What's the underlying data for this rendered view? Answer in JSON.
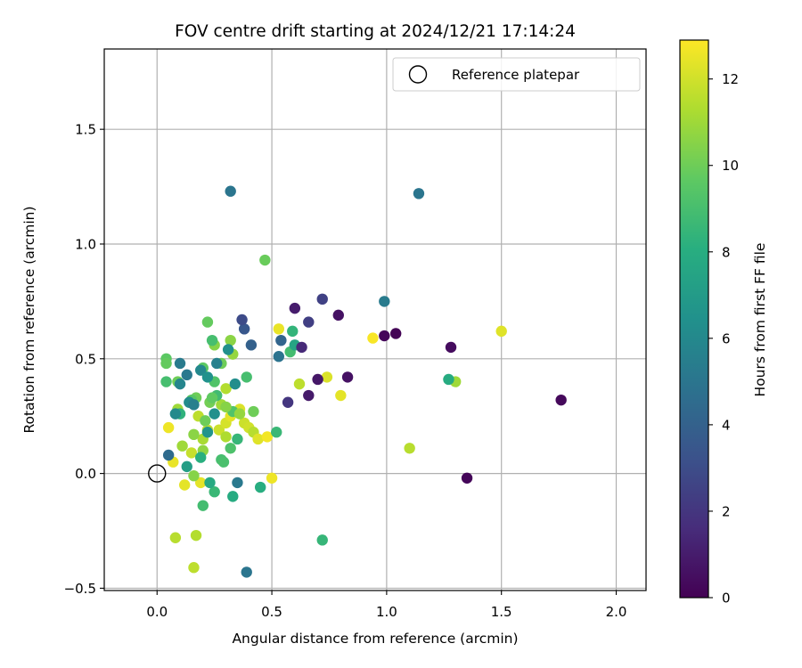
{
  "chart_data": {
    "type": "scatter",
    "title": "FOV centre drift starting at 2024/12/21 17:14:24",
    "xlabel": "Angular distance from reference (arcmin)",
    "ylabel": "Rotation from reference (arcmin)",
    "xlim": [
      -0.23,
      2.13
    ],
    "ylim": [
      -0.51,
      1.85
    ],
    "xticks": [
      0.0,
      0.5,
      1.0,
      1.5,
      2.0
    ],
    "xtick_labels": [
      "0.0",
      "0.5",
      "1.0",
      "1.5",
      "2.0"
    ],
    "yticks": [
      -0.5,
      0.0,
      0.5,
      1.0,
      1.5
    ],
    "ytick_labels": [
      "−0.5",
      "0.0",
      "0.5",
      "1.0",
      "1.5"
    ],
    "grid": true,
    "legend": {
      "position": "top-right",
      "entries": [
        "Reference platepar"
      ]
    },
    "reference_point": {
      "x": 0.0,
      "y": 0.0
    },
    "colorbar": {
      "label": "Hours from first FF file",
      "colormap": "viridis",
      "range": [
        0,
        12.9
      ],
      "ticks": [
        0,
        2,
        4,
        6,
        8,
        10,
        12
      ],
      "tick_labels": [
        "0",
        "2",
        "4",
        "6",
        "8",
        "10",
        "12"
      ]
    },
    "points": [
      [
        0.07,
        0.05,
        12.5
      ],
      [
        0.12,
        -0.05,
        12.4
      ],
      [
        0.08,
        -0.28,
        11.5
      ],
      [
        0.17,
        -0.27,
        11.4
      ],
      [
        0.16,
        -0.41,
        11.6
      ],
      [
        0.11,
        0.12,
        11.0
      ],
      [
        0.15,
        0.09,
        11.8
      ],
      [
        0.2,
        0.15,
        11.2
      ],
      [
        0.22,
        0.19,
        11.7
      ],
      [
        0.18,
        0.25,
        11.6
      ],
      [
        0.05,
        0.2,
        12.6
      ],
      [
        0.27,
        0.19,
        11.9
      ],
      [
        0.3,
        0.22,
        12.1
      ],
      [
        0.32,
        0.25,
        12.4
      ],
      [
        0.36,
        0.28,
        12.2
      ],
      [
        0.38,
        0.22,
        11.9
      ],
      [
        0.4,
        0.2,
        12.0
      ],
      [
        0.42,
        0.18,
        11.5
      ],
      [
        0.44,
        0.15,
        12.3
      ],
      [
        0.48,
        0.16,
        12.7
      ],
      [
        0.5,
        -0.02,
        12.6
      ],
      [
        0.53,
        0.63,
        12.5
      ],
      [
        0.62,
        0.39,
        11.6
      ],
      [
        0.74,
        0.42,
        12.2
      ],
      [
        0.8,
        0.34,
        12.4
      ],
      [
        0.94,
        0.59,
        12.8
      ],
      [
        1.1,
        0.11,
        11.5
      ],
      [
        1.3,
        0.4,
        11.0
      ],
      [
        1.5,
        0.62,
        12.3
      ],
      [
        0.3,
        0.16,
        11.3
      ],
      [
        0.3,
        0.37,
        11.4
      ],
      [
        0.28,
        0.3,
        11.0
      ],
      [
        0.25,
        0.56,
        10.5
      ],
      [
        0.2,
        0.1,
        10.7
      ],
      [
        0.19,
        -0.04,
        12.4
      ],
      [
        0.16,
        -0.01,
        10.5
      ],
      [
        0.16,
        0.17,
        10.6
      ],
      [
        0.17,
        0.33,
        10.0
      ],
      [
        0.15,
        0.32,
        9.5
      ],
      [
        0.09,
        0.28,
        11.0
      ],
      [
        0.09,
        0.4,
        10.0
      ],
      [
        0.04,
        0.4,
        9.0
      ],
      [
        0.04,
        0.5,
        9.6
      ],
      [
        0.04,
        0.48,
        9.8
      ],
      [
        0.1,
        0.26,
        8.3
      ],
      [
        0.21,
        0.23,
        10.0
      ],
      [
        0.22,
        0.66,
        9.8
      ],
      [
        0.24,
        0.58,
        9.0
      ],
      [
        0.25,
        0.4,
        9.3
      ],
      [
        0.26,
        0.34,
        8.8
      ],
      [
        0.28,
        0.48,
        10.0
      ],
      [
        0.32,
        0.58,
        10.6
      ],
      [
        0.33,
        0.52,
        10.8
      ],
      [
        0.33,
        0.27,
        9.3
      ],
      [
        0.35,
        0.15,
        8.5
      ],
      [
        0.36,
        0.26,
        10.8
      ],
      [
        0.39,
        0.42,
        9.0
      ],
      [
        0.42,
        0.27,
        10.0
      ],
      [
        0.47,
        0.93,
        9.9
      ],
      [
        0.52,
        0.18,
        8.6
      ],
      [
        0.58,
        0.53,
        8.9
      ],
      [
        0.59,
        0.62,
        8.4
      ],
      [
        0.6,
        0.56,
        7.5
      ],
      [
        0.3,
        0.29,
        10.5
      ],
      [
        0.28,
        0.06,
        9.0
      ],
      [
        0.29,
        0.05,
        9.1
      ],
      [
        0.32,
        0.11,
        9.2
      ],
      [
        0.23,
        0.31,
        10.1
      ],
      [
        0.24,
        0.33,
        9.7
      ],
      [
        0.2,
        0.46,
        9.6
      ],
      [
        0.2,
        -0.14,
        8.9
      ],
      [
        0.25,
        -0.08,
        8.6
      ],
      [
        0.23,
        -0.04,
        7.8
      ],
      [
        0.33,
        -0.1,
        7.9
      ],
      [
        0.45,
        -0.06,
        8.0
      ],
      [
        0.72,
        -0.29,
        8.5
      ],
      [
        1.27,
        0.41,
        7.9
      ],
      [
        0.13,
        0.03,
        7.2
      ],
      [
        0.14,
        0.31,
        6.2
      ],
      [
        0.16,
        0.3,
        5.5
      ],
      [
        0.08,
        0.26,
        6.1
      ],
      [
        0.1,
        0.39,
        5.8
      ],
      [
        0.1,
        0.48,
        5.3
      ],
      [
        0.13,
        0.43,
        5.2
      ],
      [
        0.19,
        0.45,
        6.0
      ],
      [
        0.19,
        0.07,
        8.1
      ],
      [
        0.22,
        0.18,
        6.6
      ],
      [
        0.22,
        0.42,
        6.5
      ],
      [
        0.25,
        0.26,
        6.4
      ],
      [
        0.26,
        0.48,
        5.6
      ],
      [
        0.31,
        0.54,
        6.4
      ],
      [
        0.34,
        0.39,
        6.3
      ],
      [
        0.35,
        -0.04,
        5.2
      ],
      [
        0.39,
        -0.43,
        5.0
      ],
      [
        0.05,
        0.08,
        4.5
      ],
      [
        0.32,
        1.23,
        5.0
      ],
      [
        1.14,
        1.22,
        5.0
      ],
      [
        0.99,
        0.75,
        5.3
      ],
      [
        0.53,
        0.51,
        4.9
      ],
      [
        0.54,
        0.58,
        4.2
      ],
      [
        0.41,
        0.56,
        4.0
      ],
      [
        0.38,
        0.63,
        3.5
      ],
      [
        0.37,
        0.67,
        2.9
      ],
      [
        0.72,
        0.76,
        2.5
      ],
      [
        0.66,
        0.66,
        2.4
      ],
      [
        0.6,
        0.72,
        1.0
      ],
      [
        0.63,
        0.55,
        1.5
      ],
      [
        0.57,
        0.31,
        2.0
      ],
      [
        0.66,
        0.34,
        0.9
      ],
      [
        0.7,
        0.41,
        0.8
      ],
      [
        0.79,
        0.69,
        0.6
      ],
      [
        0.83,
        0.42,
        0.6
      ],
      [
        0.99,
        0.6,
        0.2
      ],
      [
        1.04,
        0.61,
        0.1
      ],
      [
        1.28,
        0.55,
        0.4
      ],
      [
        1.35,
        -0.02,
        0.2
      ],
      [
        1.76,
        0.32,
        0.3
      ]
    ]
  }
}
